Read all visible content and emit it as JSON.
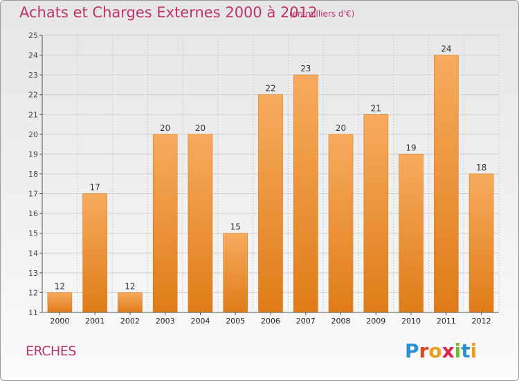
{
  "header": {
    "title": "Achats et Charges Externes 2000 à 2012",
    "subtitle": "(en milliers d'€)"
  },
  "footer": {
    "commune": "ERCHES",
    "brand": "Proxiti"
  },
  "colors": {
    "title": "#c0306a",
    "bar_light": "#f6a85a",
    "bar_dark": "#e0801c",
    "grid": "#cfcfcf",
    "axis": "#555555"
  },
  "chart_data": {
    "type": "bar",
    "title": "Achats et Charges Externes 2000 à 2012",
    "subtitle": "(en milliers d'€)",
    "categories": [
      "2000",
      "2001",
      "2002",
      "2003",
      "2004",
      "2005",
      "2006",
      "2007",
      "2008",
      "2009",
      "2010",
      "2011",
      "2012"
    ],
    "values": [
      12,
      17,
      12,
      20,
      20,
      15,
      22,
      23,
      20,
      21,
      19,
      24,
      18
    ],
    "data_labels": [
      "12",
      "17",
      "12",
      "20",
      "20",
      "15",
      "22",
      "23",
      "20",
      "21",
      "19",
      "24",
      "18"
    ],
    "xlabel": "",
    "ylabel": "",
    "ylim": [
      11,
      25
    ],
    "yticks": [
      11,
      12,
      13,
      14,
      15,
      16,
      17,
      18,
      19,
      20,
      21,
      22,
      23,
      24,
      25
    ],
    "grid": true,
    "legend": "none"
  }
}
